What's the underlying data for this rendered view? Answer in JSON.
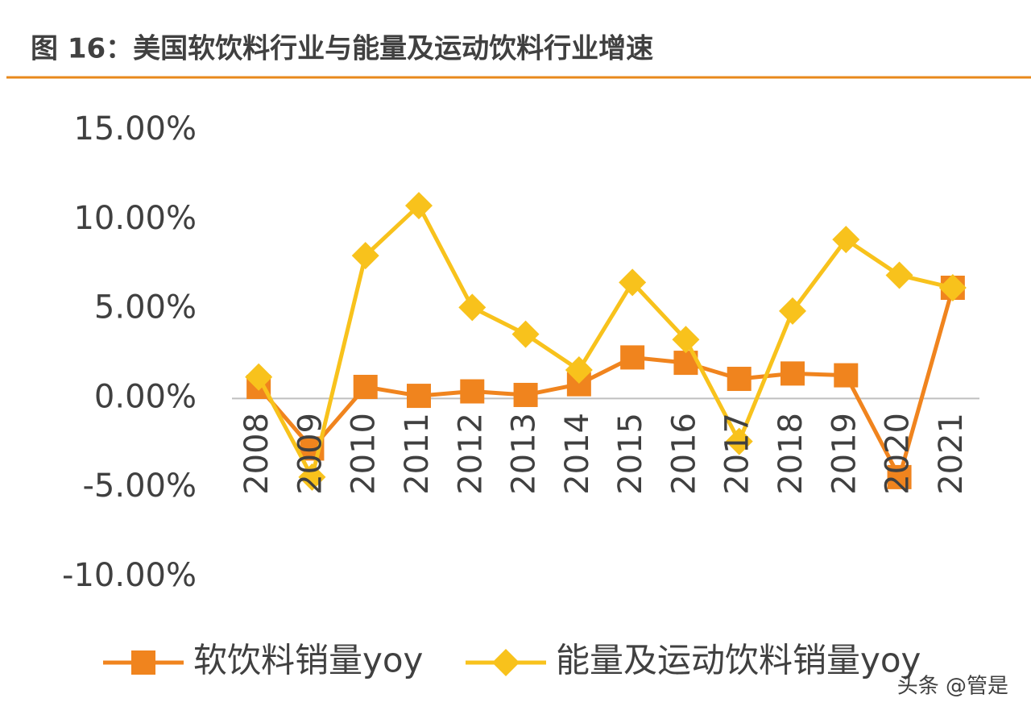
{
  "chart_data": {
    "type": "line",
    "title": "图 16：美国软饮料行业与能量及运动饮料行业增速",
    "categories": [
      "2008",
      "2009",
      "2010",
      "2011",
      "2012",
      "2013",
      "2014",
      "2015",
      "2016",
      "2017",
      "2018",
      "2019",
      "2020",
      "2021"
    ],
    "series": [
      {
        "name": "软饮料销量yoy",
        "color": "#f0841e",
        "marker": "square",
        "values": [
          0.65,
          -2.8,
          0.65,
          0.15,
          0.4,
          0.2,
          0.8,
          2.3,
          2.0,
          1.1,
          1.4,
          1.3,
          -4.4,
          6.2
        ]
      },
      {
        "name": "能量及运动饮料销量yoy",
        "color": "#f8c21c",
        "marker": "diamond",
        "values": [
          1.2,
          -4.4,
          8.0,
          10.8,
          5.1,
          3.6,
          1.6,
          6.5,
          3.3,
          -2.4,
          4.9,
          8.9,
          6.9,
          6.2
        ]
      }
    ],
    "ylim": [
      -10,
      15
    ],
    "yticks": [
      {
        "value": -10,
        "label": "-10.00%"
      },
      {
        "value": -5,
        "label": "-5.00%"
      },
      {
        "value": 0,
        "label": "0.00%"
      },
      {
        "value": 5,
        "label": "5.00%"
      },
      {
        "value": 10,
        "label": "10.00%"
      },
      {
        "value": 15,
        "label": "15.00%"
      }
    ],
    "watermark": "头条 @管是"
  }
}
